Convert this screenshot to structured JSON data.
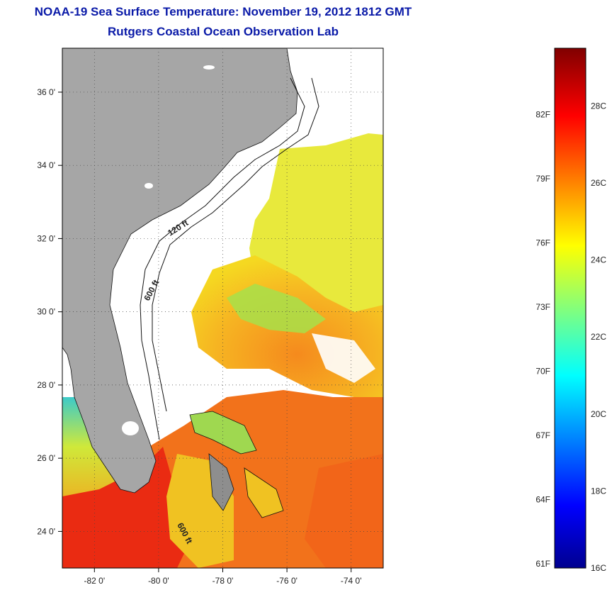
{
  "header": {
    "title": "NOAA-19 Sea Surface Temperature:  November 19, 2012 1812 GMT",
    "subtitle": "Rutgers Coastal Ocean Observation Lab"
  },
  "map": {
    "lat_ticks": [
      "36 0'",
      "34 0'",
      "32 0'",
      "30 0'",
      "28 0'",
      "26 0'",
      "24 0'"
    ],
    "lon_ticks": [
      "-82 0'",
      "-80 0'",
      "-78 0'",
      "-76 0'",
      "-74 0'"
    ],
    "lat_values": [
      36,
      34,
      32,
      30,
      28,
      26,
      24
    ],
    "lon_values": [
      -82,
      -80,
      -78,
      -76,
      -74
    ],
    "contour_labels": [
      "120 ft",
      "600 ft",
      "600 ft"
    ],
    "colors": {
      "land": "#a6a6a6",
      "no_data": "#ffffff",
      "warm": "#ee2a10",
      "mid": "#f4e21f"
    }
  },
  "colorbar": {
    "fahrenheit_labels": [
      "82F",
      "79F",
      "76F",
      "73F",
      "70F",
      "67F",
      "64F",
      "61F"
    ],
    "celsius_labels": [
      "28C",
      "26C",
      "24C",
      "22C",
      "20C",
      "18C",
      "16C"
    ],
    "min_c": 16,
    "max_c": 29.5
  }
}
